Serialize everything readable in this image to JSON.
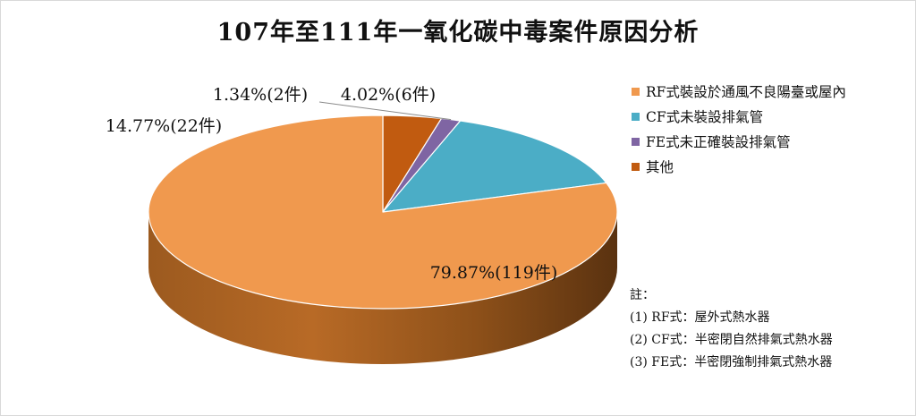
{
  "chart_data": {
    "type": "pie",
    "title": "107年至111年一氧化碳中毒案件原因分析",
    "categories": [
      "RF式裝設於通風不良陽臺或屋內",
      "CF式未裝設排氣管",
      "FE式未正確裝設排氣管",
      "其他"
    ],
    "values": [
      79.87,
      14.77,
      1.34,
      4.02
    ],
    "counts": [
      119,
      22,
      2,
      6
    ],
    "data_labels": [
      "79.87%(119件)",
      "14.77%(22件)",
      "1.34%(2件)",
      "4.02%(6件)"
    ],
    "colors": [
      "#f0994e",
      "#4badc6",
      "#7f65a3",
      "#c15b10"
    ],
    "legend_position": "right"
  },
  "notes": {
    "heading": "註：",
    "lines": [
      "(1) RF式：屋外式熱水器",
      "(2) CF式：半密閉自然排氣式熱水器",
      "(3) FE式：半密閉強制排氣式熱水器"
    ]
  }
}
